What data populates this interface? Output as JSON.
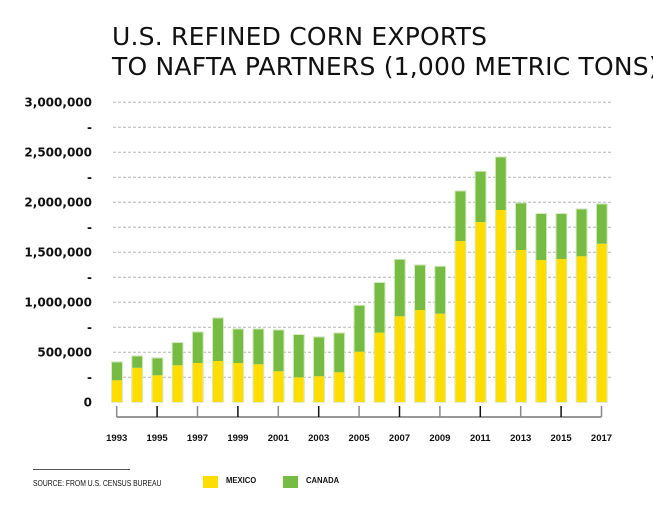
{
  "title": {
    "line1": "U.S. REFINED CORN EXPORTS",
    "line2": "TO NAFTA PARTNERS (1,000 METRIC TONS)"
  },
  "source": "SOURCE: FROM U.S. CENSUS BUREAU",
  "legend": [
    {
      "label": "MEXICO",
      "color": "#FFDD00"
    },
    {
      "label": "CANADA",
      "color": "#76BC43"
    }
  ],
  "chart_data": {
    "type": "bar",
    "stacked": true,
    "title": "U.S. REFINED CORN EXPORTS TO NAFTA PARTNERS (1,000 METRIC TONS)",
    "xlabel": "",
    "ylabel": "",
    "ylim": [
      0,
      3000000
    ],
    "grid": true,
    "legend_position": "bottom",
    "y_ticks": [
      {
        "value": 3000000,
        "label": "3,000,000"
      },
      {
        "value": 2750000,
        "label": "-"
      },
      {
        "value": 2500000,
        "label": "2,500,000"
      },
      {
        "value": 2250000,
        "label": "-"
      },
      {
        "value": 2000000,
        "label": "2,000,000"
      },
      {
        "value": 1750000,
        "label": "-"
      },
      {
        "value": 1500000,
        "label": "1,500,000"
      },
      {
        "value": 1250000,
        "label": "-"
      },
      {
        "value": 1000000,
        "label": "1,000,000"
      },
      {
        "value": 750000,
        "label": "-"
      },
      {
        "value": 500000,
        "label": "500,000"
      },
      {
        "value": 250000,
        "label": "-"
      },
      {
        "value": 0,
        "label": "0"
      }
    ],
    "x_tick_labels": [
      "1993",
      "1995",
      "1997",
      "1999",
      "2001",
      "2003",
      "2005",
      "2007",
      "2009",
      "2011",
      "2013",
      "2015",
      "2017"
    ],
    "categories": [
      "1993",
      "1994",
      "1995",
      "1996",
      "1997",
      "1998",
      "1999",
      "2000",
      "2001",
      "2002",
      "2003",
      "2004",
      "2005",
      "2006",
      "2007",
      "2008",
      "2009",
      "2010",
      "2011",
      "2012",
      "2013",
      "2014",
      "2015",
      "2016",
      "2017"
    ],
    "series": [
      {
        "name": "MEXICO",
        "color": "#FFDD00",
        "values": [
          220000,
          345000,
          270000,
          370000,
          393000,
          413000,
          393000,
          380000,
          310000,
          250000,
          260000,
          300000,
          506000,
          696000,
          860000,
          923000,
          886000,
          1613000,
          1803000,
          1923000,
          1523000,
          1423000,
          1433000,
          1460000,
          1586000
        ]
      },
      {
        "name": "CANADA",
        "color": "#76BC43",
        "values": [
          180000,
          115000,
          170000,
          223000,
          307000,
          427000,
          337000,
          350000,
          410000,
          423000,
          390000,
          390000,
          460000,
          497000,
          566000,
          447000,
          470000,
          497000,
          503000,
          527000,
          467000,
          460000,
          450000,
          470000,
          394000
        ]
      }
    ]
  }
}
